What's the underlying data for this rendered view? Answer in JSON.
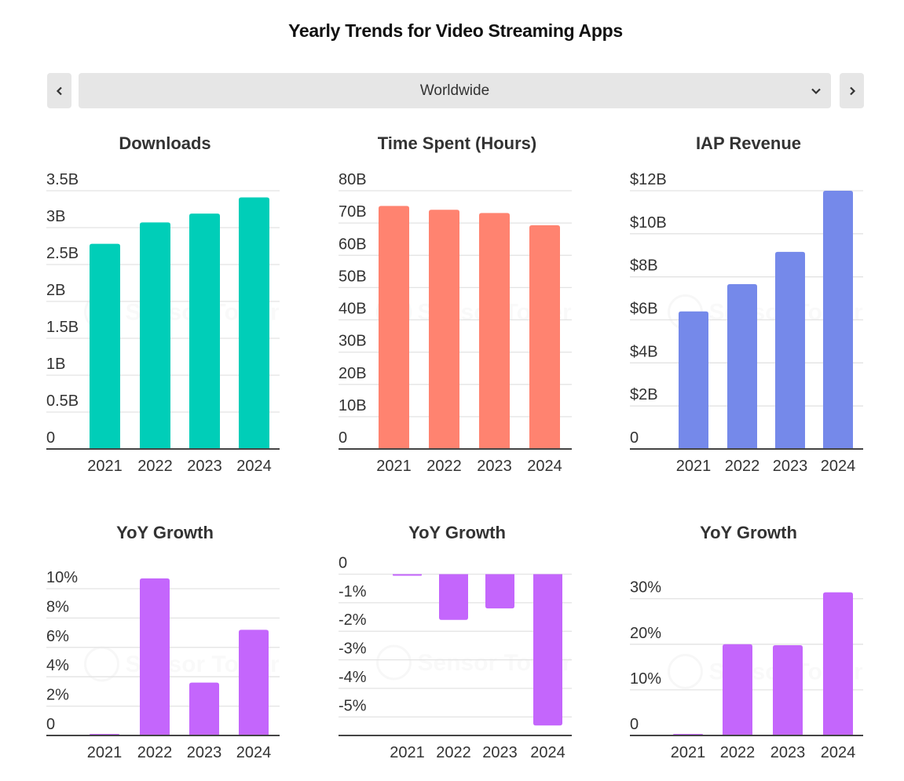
{
  "header": {
    "title": "Yearly Trends for Video Streaming Apps"
  },
  "region_selector": {
    "prev_icon": "chevron-left-icon",
    "next_icon": "chevron-right-icon",
    "dropdown_icon": "chevron-down-icon",
    "selected": "Worldwide"
  },
  "watermark": "Sensor Tower",
  "colors": {
    "downloads": "#00CEB8",
    "time_spent": "#FF8370",
    "iap_revenue": "#7589EA",
    "yoy": "#C466FC"
  },
  "chart_data": [
    {
      "id": "downloads",
      "type": "bar",
      "title": "Downloads",
      "categories": [
        "2021",
        "2022",
        "2023",
        "2024"
      ],
      "values": [
        2.78,
        3.07,
        3.19,
        3.41
      ],
      "unit": "billion",
      "ylim": [
        0,
        3.5
      ],
      "yticks": [
        0,
        0.5,
        1,
        1.5,
        2,
        2.5,
        3,
        3.5
      ],
      "ytick_labels": [
        "0",
        "0.5B",
        "1B",
        "1.5B",
        "2B",
        "2.5B",
        "3B",
        "3.5B"
      ],
      "xlabel": "",
      "ylabel": "",
      "grid": true,
      "legend": "none"
    },
    {
      "id": "time_spent",
      "type": "bar",
      "title": "Time Spent (Hours)",
      "categories": [
        "2021",
        "2022",
        "2023",
        "2024"
      ],
      "values": [
        75.3,
        74.1,
        73.1,
        69.3
      ],
      "unit": "billion hours",
      "ylim": [
        0,
        80
      ],
      "yticks": [
        0,
        10,
        20,
        30,
        40,
        50,
        60,
        70,
        80
      ],
      "ytick_labels": [
        "0",
        "10B",
        "20B",
        "30B",
        "40B",
        "50B",
        "60B",
        "70B",
        "80B"
      ],
      "xlabel": "",
      "ylabel": "",
      "grid": true,
      "legend": "none"
    },
    {
      "id": "iap_revenue",
      "type": "bar",
      "title": "IAP Revenue",
      "categories": [
        "2021",
        "2022",
        "2023",
        "2024"
      ],
      "values": [
        6.39,
        7.66,
        9.16,
        12.0
      ],
      "unit": "billion USD",
      "ylim": [
        0,
        12
      ],
      "yticks": [
        0,
        2,
        4,
        6,
        8,
        10,
        12
      ],
      "ytick_labels": [
        "0",
        "$2B",
        "$4B",
        "$6B",
        "$8B",
        "$10B",
        "$12B"
      ],
      "xlabel": "",
      "ylabel": "",
      "grid": true,
      "legend": "none"
    },
    {
      "id": "downloads_yoy",
      "type": "bar",
      "title": "YoY Growth",
      "categories": [
        "2021",
        "2022",
        "2023",
        "2024"
      ],
      "values": [
        0,
        10.7,
        3.6,
        7.2
      ],
      "unit": "percent",
      "ylim": [
        0,
        10.8
      ],
      "yticks": [
        0,
        2,
        4,
        6,
        8,
        10
      ],
      "ytick_labels": [
        "0",
        "2%",
        "4%",
        "6%",
        "8%",
        "10%"
      ],
      "xlabel": "",
      "ylabel": "",
      "grid": true,
      "legend": "none"
    },
    {
      "id": "time_spent_yoy",
      "type": "bar",
      "title": "YoY Growth",
      "categories": [
        "2021",
        "2022",
        "2023",
        "2024"
      ],
      "values": [
        0,
        -1.6,
        -1.2,
        -5.3
      ],
      "unit": "percent",
      "ylim": [
        -5.65,
        0
      ],
      "yticks": [
        0,
        -1,
        -2,
        -3,
        -4,
        -5
      ],
      "ytick_labels": [
        "0",
        "-1%",
        "-2%",
        "-3%",
        "-4%",
        "-5%"
      ],
      "xlabel": "",
      "ylabel": "",
      "grid": true,
      "legend": "none"
    },
    {
      "id": "iap_revenue_yoy",
      "type": "bar",
      "title": "YoY Growth",
      "categories": [
        "2021",
        "2022",
        "2023",
        "2024"
      ],
      "values": [
        0,
        20.0,
        19.8,
        31.4
      ],
      "unit": "percent",
      "ylim": [
        0,
        31.5
      ],
      "yticks": [
        0,
        10,
        20,
        30
      ],
      "ytick_labels": [
        "0",
        "10%",
        "20%",
        "30%"
      ],
      "xlabel": "",
      "ylabel": "",
      "grid": true,
      "legend": "none"
    }
  ]
}
